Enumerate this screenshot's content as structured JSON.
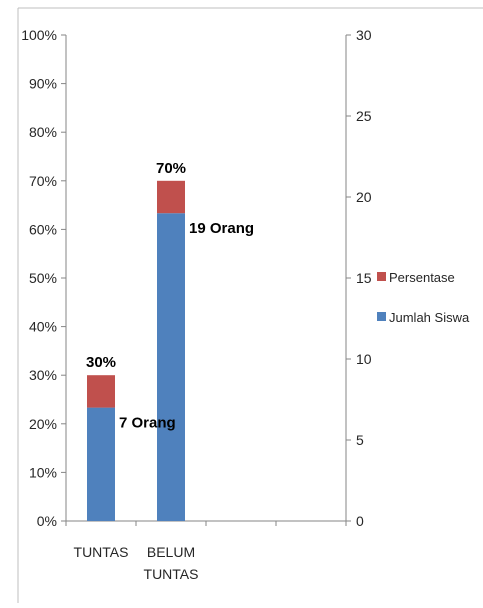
{
  "chart_data": {
    "type": "bar",
    "stacked": true,
    "categories": [
      "TUNTAS",
      "BELUM TUNTAS",
      "",
      ""
    ],
    "category_lines": [
      [
        "TUNTAS"
      ],
      [
        "BELUM",
        "TUNTAS"
      ],
      [
        ""
      ],
      [
        ""
      ]
    ],
    "left_axis": {
      "ticks": [
        "0%",
        "10%",
        "20%",
        "30%",
        "40%",
        "50%",
        "60%",
        "70%",
        "80%",
        "90%",
        "100%"
      ],
      "ylim": [
        0,
        100
      ]
    },
    "right_axis": {
      "ticks": [
        "0",
        "5",
        "10",
        "15",
        "20",
        "25",
        "30"
      ],
      "ylim": [
        0,
        30
      ]
    },
    "series": [
      {
        "name": "Jumlah Siswa",
        "axis": "right",
        "values": [
          7,
          19,
          null,
          null
        ],
        "labels": [
          "7 Orang",
          "19 Orang",
          "",
          ""
        ],
        "color": "#4f81bd"
      },
      {
        "name": "Persentase",
        "axis": "left",
        "values": [
          30,
          70,
          null,
          null
        ],
        "labels": [
          "30%",
          "70%",
          "",
          ""
        ],
        "color": "#c0504d"
      }
    ],
    "legend_position": "right",
    "grid": false
  }
}
